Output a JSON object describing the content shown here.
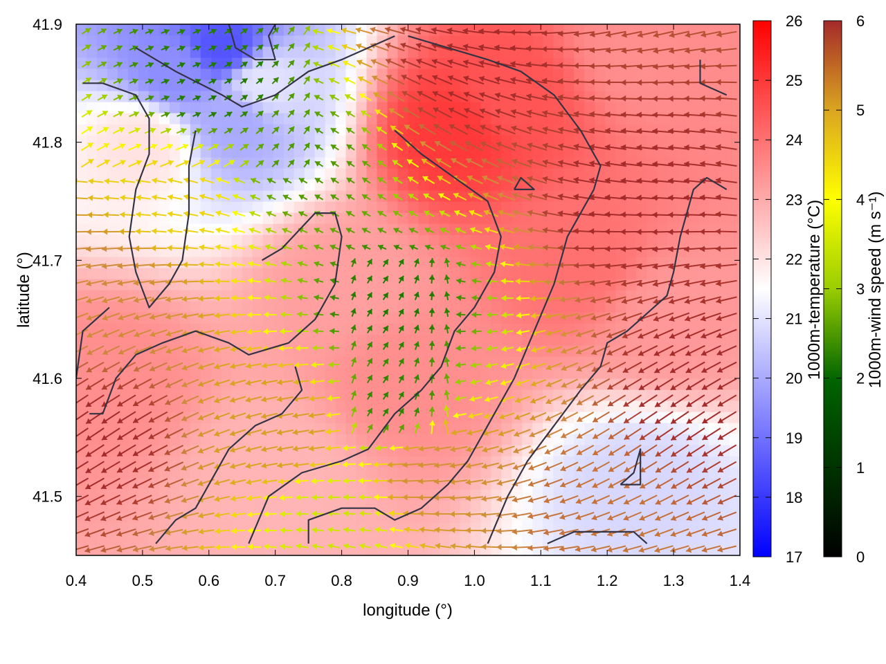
{
  "chart_data": {
    "type": "heatmap",
    "title": "",
    "xlabel": "longitude (°)",
    "ylabel": "latitude (°)",
    "xlim": [
      0.4,
      1.4
    ],
    "ylim": [
      41.45,
      41.9
    ],
    "x_ticks": [
      "0.4",
      "0.5",
      "0.6",
      "0.7",
      "0.8",
      "0.9",
      "1.0",
      "1.1",
      "1.2",
      "1.3",
      "1.4"
    ],
    "y_ticks": [
      "41.5",
      "41.6",
      "41.7",
      "41.8",
      "41.9"
    ],
    "grid": false,
    "temperature_colorbar": {
      "label": "1000m-temperature (°C)",
      "range": [
        17,
        26
      ],
      "ticks": [
        "17",
        "18",
        "19",
        "20",
        "21",
        "22",
        "23",
        "24",
        "25",
        "26"
      ],
      "colors": [
        "#0000ff",
        "#ffffff",
        "#ff0000"
      ]
    },
    "speed_colorbar": {
      "label": "1000m-wind speed (m s⁻¹)",
      "range": [
        0,
        6
      ],
      "ticks": [
        "0",
        "1",
        "2",
        "3",
        "4",
        "5",
        "6"
      ],
      "colors": [
        "#000000",
        "#006400",
        "#9acd00",
        "#ffff00",
        "#daa520",
        "#cd853f",
        "#a52a2a"
      ]
    },
    "temperature_field": [
      {
        "lon": 0.62,
        "lat": 41.88,
        "value": 18.5
      },
      {
        "lon": 0.55,
        "lat": 41.86,
        "value": 19.5
      },
      {
        "lon": 0.68,
        "lat": 41.85,
        "value": 21.0
      },
      {
        "lon": 0.64,
        "lat": 41.82,
        "value": 20.0
      },
      {
        "lon": 0.5,
        "lat": 41.8,
        "value": 22.0
      },
      {
        "lon": 0.97,
        "lat": 41.81,
        "value": 25.0
      },
      {
        "lon": 1.05,
        "lat": 41.84,
        "value": 24.5
      },
      {
        "lon": 1.25,
        "lat": 41.88,
        "value": 23.5
      },
      {
        "lon": 0.8,
        "lat": 41.68,
        "value": 23.2
      },
      {
        "lon": 0.9,
        "lat": 41.6,
        "value": 23.5
      },
      {
        "lon": 1.15,
        "lat": 41.7,
        "value": 24.0
      },
      {
        "lon": 1.3,
        "lat": 41.65,
        "value": 23.3
      },
      {
        "lon": 0.45,
        "lat": 41.6,
        "value": 23.5
      },
      {
        "lon": 1.25,
        "lat": 41.51,
        "value": 20.8
      },
      {
        "lon": 0.7,
        "lat": 41.52,
        "value": 22.8
      }
    ],
    "wind_speed_field": [
      {
        "lon": 0.6,
        "lat": 41.85,
        "value": 1.2
      },
      {
        "lon": 0.75,
        "lat": 41.78,
        "value": 1.5
      },
      {
        "lon": 0.88,
        "lat": 41.66,
        "value": 1.2
      },
      {
        "lon": 0.88,
        "lat": 41.58,
        "value": 1.3
      },
      {
        "lon": 0.8,
        "lat": 41.48,
        "value": 2.5
      },
      {
        "lon": 0.55,
        "lat": 41.75,
        "value": 3.5
      },
      {
        "lon": 0.72,
        "lat": 41.56,
        "value": 4.2
      },
      {
        "lon": 0.95,
        "lat": 41.52,
        "value": 4.6
      },
      {
        "lon": 0.45,
        "lat": 41.68,
        "value": 4.8
      },
      {
        "lon": 1.15,
        "lat": 41.5,
        "value": 5.2
      },
      {
        "lon": 1.25,
        "lat": 41.75,
        "value": 6.0
      },
      {
        "lon": 0.45,
        "lat": 41.55,
        "value": 6.0
      },
      {
        "lon": 1.0,
        "lat": 41.86,
        "value": 6.0
      },
      {
        "lon": 1.35,
        "lat": 41.6,
        "value": 6.0
      }
    ],
    "terrain_contours": [
      [
        [
          0.49,
          41.88
        ],
        [
          0.55,
          41.86
        ],
        [
          0.62,
          41.84
        ],
        [
          0.65,
          41.83
        ],
        [
          0.7,
          41.84
        ],
        [
          0.75,
          41.86
        ],
        [
          0.8,
          41.87
        ],
        [
          0.84,
          41.88
        ],
        [
          0.88,
          41.89
        ]
      ],
      [
        [
          0.63,
          41.9
        ],
        [
          0.64,
          41.88
        ],
        [
          0.67,
          41.87
        ],
        [
          0.7,
          41.87
        ],
        [
          0.69,
          41.89
        ],
        [
          0.7,
          41.9
        ]
      ],
      [
        [
          0.41,
          41.85
        ],
        [
          0.44,
          41.85
        ],
        [
          0.49,
          41.84
        ],
        [
          0.51,
          41.82
        ],
        [
          0.51,
          41.79
        ],
        [
          0.49,
          41.76
        ],
        [
          0.48,
          41.72
        ],
        [
          0.49,
          41.69
        ],
        [
          0.51,
          41.66
        ],
        [
          0.54,
          41.68
        ],
        [
          0.56,
          41.7
        ],
        [
          0.57,
          41.74
        ],
        [
          0.57,
          41.78
        ],
        [
          0.58,
          41.81
        ]
      ],
      [
        [
          0.45,
          41.66
        ],
        [
          0.41,
          41.64
        ],
        [
          0.4,
          41.6
        ]
      ],
      [
        [
          0.42,
          41.57
        ],
        [
          0.44,
          41.57
        ],
        [
          0.46,
          41.6
        ],
        [
          0.49,
          41.62
        ],
        [
          0.53,
          41.63
        ],
        [
          0.58,
          41.64
        ],
        [
          0.63,
          41.63
        ],
        [
          0.66,
          41.62
        ],
        [
          0.72,
          41.63
        ],
        [
          0.76,
          41.65
        ],
        [
          0.79,
          41.68
        ],
        [
          0.8,
          41.72
        ],
        [
          0.79,
          41.74
        ],
        [
          0.76,
          41.74
        ],
        [
          0.71,
          41.71
        ],
        [
          0.68,
          41.7
        ]
      ],
      [
        [
          0.52,
          41.46
        ],
        [
          0.55,
          41.48
        ],
        [
          0.58,
          41.49
        ],
        [
          0.6,
          41.51
        ],
        [
          0.63,
          41.54
        ],
        [
          0.67,
          41.56
        ],
        [
          0.71,
          41.57
        ],
        [
          0.74,
          41.59
        ],
        [
          0.73,
          41.61
        ]
      ],
      [
        [
          0.66,
          41.46
        ],
        [
          0.69,
          41.5
        ],
        [
          0.74,
          41.52
        ],
        [
          0.8,
          41.53
        ],
        [
          0.84,
          41.54
        ],
        [
          0.88,
          41.57
        ],
        [
          0.92,
          41.59
        ],
        [
          0.95,
          41.61
        ],
        [
          0.97,
          41.64
        ],
        [
          1.0,
          41.66
        ],
        [
          1.03,
          41.69
        ],
        [
          1.04,
          41.72
        ],
        [
          1.02,
          41.75
        ],
        [
          0.97,
          41.77
        ],
        [
          0.92,
          41.79
        ],
        [
          0.88,
          41.81
        ]
      ],
      [
        [
          0.75,
          41.46
        ],
        [
          0.75,
          41.48
        ],
        [
          0.8,
          41.49
        ],
        [
          0.85,
          41.49
        ],
        [
          0.88,
          41.48
        ],
        [
          0.92,
          41.49
        ],
        [
          0.96,
          41.51
        ],
        [
          0.99,
          41.53
        ],
        [
          1.02,
          41.56
        ],
        [
          1.06,
          41.6
        ],
        [
          1.09,
          41.64
        ],
        [
          1.12,
          41.68
        ],
        [
          1.14,
          41.72
        ],
        [
          1.18,
          41.76
        ],
        [
          1.19,
          41.78
        ],
        [
          1.16,
          41.81
        ],
        [
          1.12,
          41.84
        ],
        [
          1.07,
          41.86
        ],
        [
          1.02,
          41.87
        ],
        [
          0.96,
          41.88
        ],
        [
          0.9,
          41.89
        ]
      ],
      [
        [
          1.02,
          41.46
        ],
        [
          1.05,
          41.5
        ],
        [
          1.08,
          41.53
        ],
        [
          1.12,
          41.56
        ],
        [
          1.16,
          41.59
        ],
        [
          1.19,
          41.61
        ],
        [
          1.2,
          41.63
        ],
        [
          1.23,
          41.64
        ],
        [
          1.25,
          41.65
        ],
        [
          1.27,
          41.66
        ],
        [
          1.29,
          41.67
        ],
        [
          1.3,
          41.69
        ],
        [
          1.31,
          41.72
        ],
        [
          1.32,
          41.74
        ],
        [
          1.33,
          41.76
        ],
        [
          1.35,
          41.77
        ],
        [
          1.38,
          41.76
        ]
      ],
      [
        [
          1.06,
          41.76
        ],
        [
          1.08,
          41.76
        ],
        [
          1.09,
          41.76
        ],
        [
          1.07,
          41.77
        ],
        [
          1.06,
          41.76
        ]
      ],
      [
        [
          1.11,
          41.46
        ],
        [
          1.15,
          41.47
        ],
        [
          1.2,
          41.47
        ],
        [
          1.24,
          41.47
        ],
        [
          1.26,
          41.46
        ]
      ],
      [
        [
          1.22,
          41.51
        ],
        [
          1.25,
          41.51
        ],
        [
          1.25,
          41.54
        ],
        [
          1.24,
          41.52
        ],
        [
          1.22,
          41.51
        ]
      ],
      [
        [
          1.34,
          41.87
        ],
        [
          1.34,
          41.85
        ],
        [
          1.38,
          41.84
        ]
      ]
    ]
  }
}
